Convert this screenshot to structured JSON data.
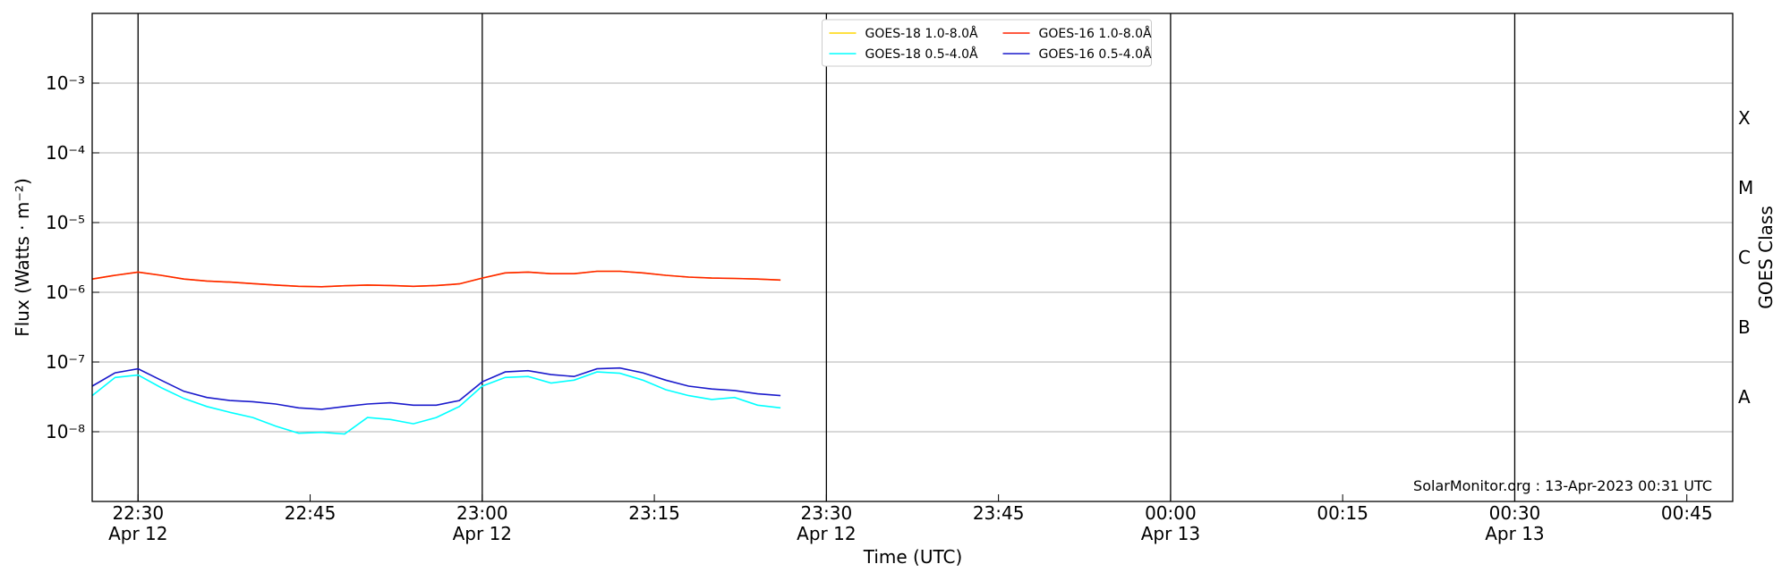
{
  "chart_data": {
    "type": "line",
    "ylabel": "Flux (Watts · m⁻²)",
    "xlabel": "Time (UTC)",
    "y2label": "GOES Class",
    "annotation": "SolarMonitor.org : 13-Apr-2023 00:31 UTC",
    "log_y": true,
    "grid": true,
    "legend": "upper center",
    "xlim": [
      "Apr 12 22:26",
      "Apr 13 00:49"
    ],
    "ylim": [
      1e-09,
      0.01
    ],
    "yticks": [
      {
        "value": 1e-08,
        "label": "10⁻⁸"
      },
      {
        "value": 1e-07,
        "label": "10⁻⁷"
      },
      {
        "value": 1e-06,
        "label": "10⁻⁶"
      },
      {
        "value": 1e-05,
        "label": "10⁻⁵"
      },
      {
        "value": 0.0001,
        "label": "10⁻⁴"
      },
      {
        "value": 0.001,
        "label": "10⁻³"
      }
    ],
    "y2ticks": [
      {
        "value": 3.16e-08,
        "label": "A"
      },
      {
        "value": 3.16e-07,
        "label": "B"
      },
      {
        "value": 3.16e-06,
        "label": "C"
      },
      {
        "value": 3.16e-05,
        "label": "M"
      },
      {
        "value": 0.000316,
        "label": "X"
      }
    ],
    "xticks": [
      {
        "value": "Apr 12 22:30",
        "label": [
          "22:30",
          "Apr 12"
        ]
      },
      {
        "value": "Apr 12 22:45",
        "label": [
          "22:45"
        ]
      },
      {
        "value": "Apr 12 23:00",
        "label": [
          "23:00",
          "Apr 12"
        ]
      },
      {
        "value": "Apr 12 23:15",
        "label": [
          "23:15"
        ]
      },
      {
        "value": "Apr 12 23:30",
        "label": [
          "23:30",
          "Apr 12"
        ]
      },
      {
        "value": "Apr 12 23:45",
        "label": [
          "23:45"
        ]
      },
      {
        "value": "Apr 13 00:00",
        "label": [
          "00:00",
          "Apr 13"
        ]
      },
      {
        "value": "Apr 13 00:15",
        "label": [
          "00:15"
        ]
      },
      {
        "value": "Apr 13 00:30",
        "label": [
          "00:30",
          "Apr 13"
        ]
      },
      {
        "value": "Apr 13 00:45",
        "label": [
          "00:45"
        ]
      }
    ],
    "x": [
      "Apr 12 22:26",
      "Apr 12 22:28",
      "Apr 12 22:30",
      "Apr 12 22:32",
      "Apr 12 22:34",
      "Apr 12 22:36",
      "Apr 12 22:38",
      "Apr 12 22:40",
      "Apr 12 22:42",
      "Apr 12 22:44",
      "Apr 12 22:46",
      "Apr 12 22:48",
      "Apr 12 22:50",
      "Apr 12 22:52",
      "Apr 12 22:54",
      "Apr 12 22:56",
      "Apr 12 22:58",
      "Apr 12 23:00",
      "Apr 12 23:02",
      "Apr 12 23:04",
      "Apr 12 23:06",
      "Apr 12 23:08",
      "Apr 12 23:10",
      "Apr 12 23:12",
      "Apr 12 23:14",
      "Apr 12 23:16",
      "Apr 12 23:18",
      "Apr 12 23:20",
      "Apr 12 23:22",
      "Apr 12 23:24",
      "Apr 12 23:26"
    ],
    "series": [
      {
        "name": "GOES-18 1.0-8.0Å",
        "color": "#ffd700",
        "values": [
          1.55e-06,
          1.75e-06,
          1.95e-06,
          1.75e-06,
          1.55e-06,
          1.45e-06,
          1.4e-06,
          1.33e-06,
          1.27e-06,
          1.22e-06,
          1.2e-06,
          1.24e-06,
          1.27e-06,
          1.25e-06,
          1.22e-06,
          1.25e-06,
          1.32e-06,
          1.6e-06,
          1.9e-06,
          1.95e-06,
          1.85e-06,
          1.85e-06,
          2e-06,
          2e-06,
          1.9e-06,
          1.75e-06,
          1.65e-06,
          1.6e-06,
          1.58e-06,
          1.55e-06,
          1.5e-06
        ]
      },
      {
        "name": "GOES-18 0.5-4.0Å",
        "color": "#00ffff",
        "values": [
          3.3e-08,
          6e-08,
          6.5e-08,
          4.3e-08,
          3e-08,
          2.3e-08,
          1.9e-08,
          1.6e-08,
          1.2e-08,
          9.5e-09,
          9.8e-09,
          9.3e-09,
          1.6e-08,
          1.5e-08,
          1.3e-08,
          1.6e-08,
          2.3e-08,
          4.5e-08,
          6e-08,
          6.2e-08,
          5e-08,
          5.5e-08,
          7.2e-08,
          6.9e-08,
          5.5e-08,
          4e-08,
          3.3e-08,
          2.9e-08,
          3.1e-08,
          2.4e-08,
          2.2e-08
        ]
      },
      {
        "name": "GOES-16 1.0-8.0Å",
        "color": "#ff2200",
        "values": [
          1.55e-06,
          1.75e-06,
          1.95e-06,
          1.75e-06,
          1.55e-06,
          1.45e-06,
          1.4e-06,
          1.33e-06,
          1.27e-06,
          1.22e-06,
          1.2e-06,
          1.24e-06,
          1.27e-06,
          1.25e-06,
          1.22e-06,
          1.25e-06,
          1.32e-06,
          1.6e-06,
          1.9e-06,
          1.95e-06,
          1.85e-06,
          1.85e-06,
          2e-06,
          2e-06,
          1.9e-06,
          1.75e-06,
          1.65e-06,
          1.6e-06,
          1.58e-06,
          1.55e-06,
          1.5e-06
        ]
      },
      {
        "name": "GOES-16 0.5-4.0Å",
        "color": "#1a1acc",
        "values": [
          4.5e-08,
          7e-08,
          8e-08,
          5.5e-08,
          3.8e-08,
          3.1e-08,
          2.8e-08,
          2.7e-08,
          2.5e-08,
          2.2e-08,
          2.1e-08,
          2.3e-08,
          2.5e-08,
          2.6e-08,
          2.4e-08,
          2.4e-08,
          2.8e-08,
          5.2e-08,
          7.2e-08,
          7.5e-08,
          6.6e-08,
          6.2e-08,
          8e-08,
          8.2e-08,
          7e-08,
          5.5e-08,
          4.5e-08,
          4.1e-08,
          3.9e-08,
          3.5e-08,
          3.3e-08
        ]
      }
    ]
  }
}
